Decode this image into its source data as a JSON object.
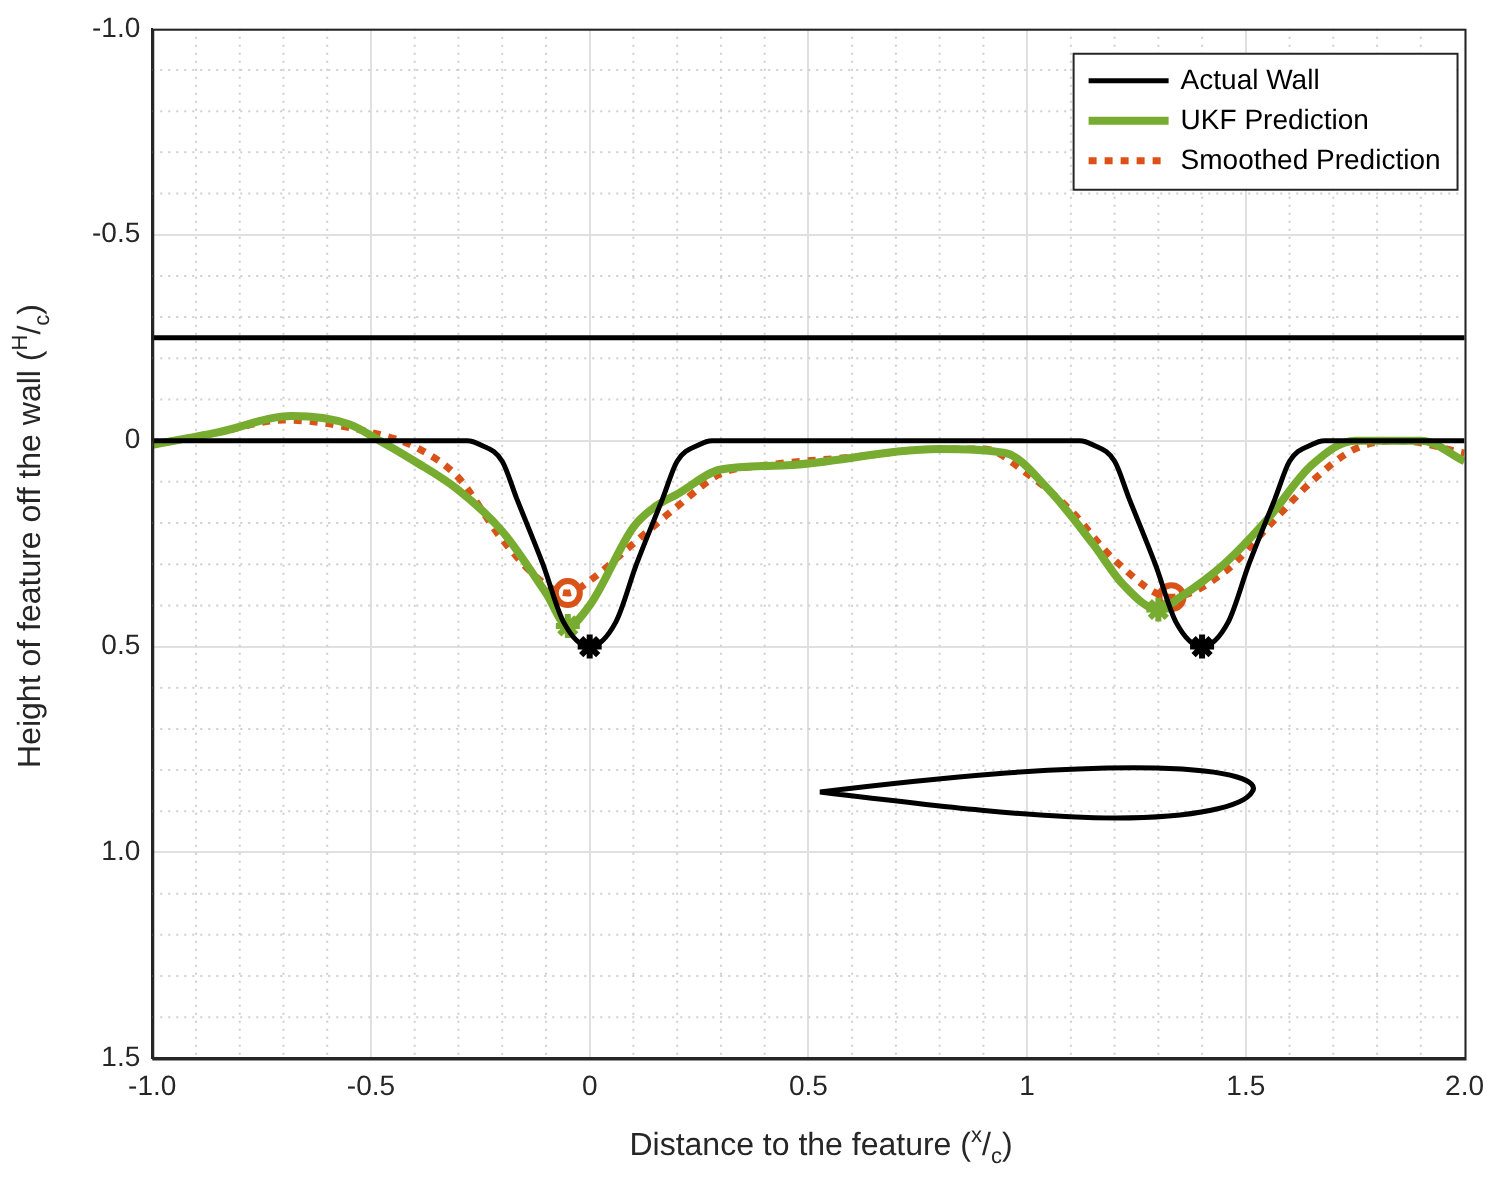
{
  "chart_data": {
    "type": "line",
    "xlabel": "Distance to the feature ($^{x}$/$_{c}$)",
    "ylabel": "Height of feature off the wall ($^{H}$/$_{c}$)",
    "xlim": [
      -1,
      2
    ],
    "xticks": [
      {
        "value": -1,
        "label": "-1.0"
      },
      {
        "value": -0.5,
        "label": "-0.5"
      },
      0,
      {
        "value": 0.5,
        "label": "0.5"
      },
      1,
      {
        "value": 1.5,
        "label": "1.5"
      },
      {
        "value": 2,
        "label": "2.0"
      }
    ],
    "ylim": [
      1.5,
      -1
    ],
    "yticks": [
      {
        "value": -1,
        "label": "-1.0"
      },
      {
        "value": -0.5,
        "label": "-0.5"
      },
      0,
      {
        "value": 0.5,
        "label": "0.5"
      },
      {
        "value": 1,
        "label": "1.0"
      },
      {
        "value": 1.5,
        "label": "1.5"
      }
    ],
    "grid": true,
    "legend": "top right",
    "ref_lines": [
      {
        "axis": "y",
        "value": -0.25,
        "color": "#000000",
        "line_style": "solid"
      }
    ],
    "series": [
      {
        "name": "Actual Wall",
        "color": "#000000",
        "line_style": "solid",
        "x": [
          -1,
          -0.28,
          -0.25,
          -0.2,
          -0.167,
          -0.107,
          -0.06,
          0,
          0.06,
          0.107,
          0.167,
          0.2,
          0.25,
          0.28,
          1.12,
          1.15,
          1.2,
          1.233,
          1.293,
          1.34,
          1.4,
          1.46,
          1.507,
          1.567,
          1.6,
          1.65,
          1.68,
          2
        ],
        "values": [
          0,
          0,
          0.01,
          0.05,
          0.14,
          0.3,
          0.44,
          0.5,
          0.44,
          0.3,
          0.14,
          0.05,
          0.01,
          0,
          0,
          0.01,
          0.05,
          0.14,
          0.3,
          0.44,
          0.5,
          0.44,
          0.3,
          0.14,
          0.05,
          0.01,
          0,
          0
        ]
      },
      {
        "name": "UKF Prediction",
        "color": "#77ac30",
        "line_style": "solid",
        "x": [
          -1,
          -0.85,
          -0.68,
          -0.55,
          -0.48,
          -0.4,
          -0.3,
          -0.2,
          -0.1,
          -0.05,
          0,
          0.1,
          0.15,
          0.2,
          0.3,
          0.45,
          0.8,
          0.95,
          1.05,
          1.15,
          1.22,
          1.3,
          1.35,
          1.45,
          1.55,
          1.65,
          1.75,
          1.9,
          2
        ],
        "values": [
          0.01,
          -0.02,
          -0.06,
          -0.04,
          0,
          0.05,
          0.12,
          0.22,
          0.37,
          0.45,
          0.4,
          0.21,
          0.16,
          0.13,
          0.07,
          0.06,
          0.02,
          0.03,
          0.12,
          0.25,
          0.35,
          0.41,
          0.38,
          0.3,
          0.19,
          0.06,
          0,
          0,
          0.05
        ]
      },
      {
        "name": "Smoothed Prediction",
        "color": "#d95319",
        "line_style": "dotted",
        "x": [
          -1,
          -0.85,
          -0.7,
          -0.5,
          -0.39,
          -0.3,
          -0.2,
          -0.1,
          -0.05,
          0,
          0.1,
          0.2,
          0.3,
          0.4,
          0.6,
          0.8,
          0.9,
          1,
          1.1,
          1.2,
          1.33,
          1.45,
          1.55,
          1.65,
          1.75,
          1.85,
          2
        ],
        "values": [
          0.01,
          -0.02,
          -0.05,
          -0.02,
          0.02,
          0.09,
          0.24,
          0.35,
          0.37,
          0.34,
          0.25,
          0.16,
          0.08,
          0.06,
          0.04,
          0.02,
          0.02,
          0.08,
          0.17,
          0.29,
          0.38,
          0.32,
          0.21,
          0.1,
          0.02,
          0,
          0.03
        ]
      },
      {
        "type": "scatter",
        "color": "#000000",
        "marker": "cross",
        "x": [
          0,
          1.4
        ],
        "values": [
          0.5,
          0.5
        ]
      },
      {
        "type": "scatter",
        "color": "#77ac30",
        "marker": "cross",
        "x": [
          -0.05,
          1.3
        ],
        "values": [
          0.45,
          0.41
        ]
      },
      {
        "type": "scatter",
        "color": "#d95319",
        "marker": "circle",
        "x": [
          -0.05,
          1.33
        ],
        "values": [
          0.37,
          0.38
        ]
      }
    ]
  }
}
